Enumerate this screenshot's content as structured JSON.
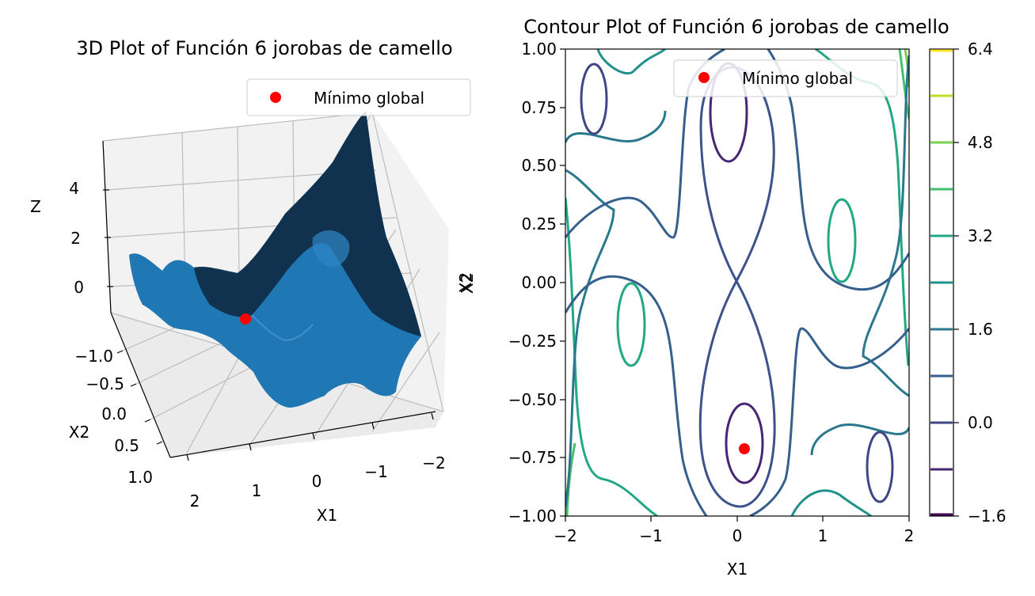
{
  "figure": {
    "background": "#ffffff"
  },
  "chart_data": [
    {
      "type": "surface3d",
      "title": "3D Plot of Función 6 jorobas de camello",
      "xlabel": "X1",
      "ylabel": "X2",
      "zlabel": "Z",
      "x_ticks": [
        "2",
        "1",
        "0",
        "−1",
        "−2"
      ],
      "y_ticks": [
        "−1.0",
        "−0.5",
        "0.0",
        "0.5",
        "1.0"
      ],
      "z_ticks": [
        "4",
        "2",
        "0"
      ],
      "xlim": [
        -2,
        2
      ],
      "ylim": [
        -1,
        1
      ],
      "zlim": [
        -1,
        6
      ],
      "surface_color": "#1f77b4",
      "legend": {
        "label": "Mínimo global",
        "placement": "upper right",
        "marker_color": "#ff0000"
      },
      "global_min": {
        "x1": 0.09,
        "x2": -0.71,
        "z": -1.03
      }
    },
    {
      "type": "contour",
      "title": "Contour Plot of Función 6 jorobas de camello",
      "xlabel": "X1",
      "ylabel": "X2",
      "xlim": [
        -2,
        2
      ],
      "ylim": [
        -1,
        1
      ],
      "x_ticks": [
        "−2",
        "−1",
        "0",
        "1",
        "2"
      ],
      "y_ticks": [
        "1.00",
        "0.75",
        "0.50",
        "0.25",
        "0.00",
        "−0.25",
        "−0.50",
        "−0.75",
        "−1.00"
      ],
      "levels": [
        -1.6,
        -0.8,
        0.0,
        0.8,
        1.6,
        2.4,
        3.2,
        4.0,
        4.8,
        5.6,
        6.4
      ],
      "colormap": "viridis",
      "colorbar_ticks": [
        "6.4",
        "4.8",
        "3.2",
        "1.6",
        "0.0",
        "−1.6"
      ],
      "legend": {
        "label": "Mínimo global",
        "placement": "upper right",
        "marker_color": "#ff0000"
      },
      "global_min": {
        "x1": 0.09,
        "x2": -0.71
      }
    }
  ]
}
